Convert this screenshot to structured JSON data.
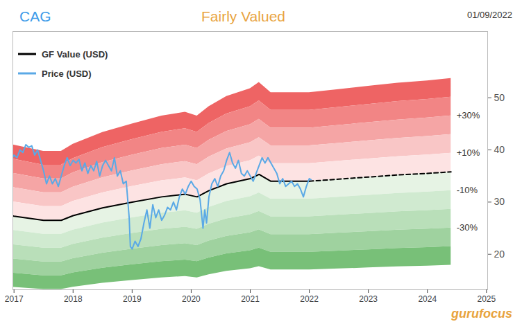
{
  "chart_data": {
    "type": "line",
    "title": "CAG",
    "subtitle": "Fairly Valued",
    "date": "01/09/2022",
    "logo": "gurufocus",
    "legend": "top-left",
    "grid": false,
    "xlim": [
      2016.98,
      2025.02
    ],
    "xticks": [
      2017,
      2018,
      2019,
      2020,
      2021,
      2022,
      2023,
      2024,
      2025
    ],
    "ylim": [
      13.2,
      62.7
    ],
    "yticks": [
      20,
      30,
      40,
      50
    ],
    "series": [
      {
        "name": "GF Value (USD)",
        "color": "#000000",
        "line_style": "solid",
        "x": [
          2016.9,
          2017.0,
          2017.5,
          2017.8,
          2018.0,
          2018.5,
          2019.0,
          2019.5,
          2019.9,
          2020.1,
          2020.3,
          2020.6,
          2021.0,
          2021.15,
          2021.35,
          2021.6,
          2022.0
        ],
        "values": [
          27.5,
          27.3,
          26.5,
          26.5,
          27.4,
          28.9,
          30.0,
          31.0,
          31.5,
          31.0,
          32.2,
          33.5,
          34.5,
          35.3,
          34.0,
          34.0,
          34.0
        ]
      },
      {
        "name": "GF Value (USD)",
        "color": "#000000",
        "line_style": "dashed",
        "x": [
          2022.0,
          2022.5,
          2023.0,
          2023.5,
          2024.0,
          2024.4
        ],
        "values": [
          34.0,
          34.4,
          34.8,
          35.2,
          35.5,
          35.8
        ]
      },
      {
        "name": "Price (USD)",
        "color": "#5aa9e6",
        "line_style": "solid",
        "x": [
          2016.9,
          2016.95,
          2017.0,
          2017.05,
          2017.1,
          2017.15,
          2017.2,
          2017.25,
          2017.3,
          2017.35,
          2017.4,
          2017.45,
          2017.5,
          2017.55,
          2017.6,
          2017.65,
          2017.7,
          2017.75,
          2017.8,
          2017.85,
          2017.9,
          2017.95,
          2018.0,
          2018.05,
          2018.1,
          2018.15,
          2018.2,
          2018.25,
          2018.3,
          2018.35,
          2018.4,
          2018.45,
          2018.5,
          2018.55,
          2018.6,
          2018.65,
          2018.7,
          2018.75,
          2018.8,
          2018.85,
          2018.9,
          2018.95,
          2018.97,
          2019.0,
          2019.05,
          2019.1,
          2019.15,
          2019.2,
          2019.25,
          2019.3,
          2019.35,
          2019.4,
          2019.45,
          2019.5,
          2019.55,
          2019.6,
          2019.65,
          2019.7,
          2019.75,
          2019.8,
          2019.85,
          2019.9,
          2019.95,
          2020.0,
          2020.05,
          2020.1,
          2020.15,
          2020.2,
          2020.23,
          2020.26,
          2020.3,
          2020.35,
          2020.4,
          2020.45,
          2020.5,
          2020.55,
          2020.6,
          2020.65,
          2020.7,
          2020.75,
          2020.8,
          2020.85,
          2020.9,
          2020.95,
          2021.0,
          2021.05,
          2021.1,
          2021.15,
          2021.2,
          2021.25,
          2021.3,
          2021.35,
          2021.4,
          2021.45,
          2021.5,
          2021.55,
          2021.6,
          2021.65,
          2021.7,
          2021.75,
          2021.8,
          2021.85,
          2021.9,
          2021.95,
          2022.0,
          2022.03
        ],
        "values": [
          36.5,
          38.0,
          39.0,
          38.5,
          40.0,
          39.5,
          41.0,
          40.5,
          40.8,
          39.0,
          40.0,
          38.0,
          36.0,
          33.5,
          35.0,
          33.5,
          34.5,
          33.0,
          35.0,
          37.0,
          38.5,
          37.0,
          38.0,
          37.5,
          38.2,
          36.0,
          37.5,
          35.5,
          37.0,
          36.0,
          37.8,
          35.0,
          37.0,
          38.0,
          37.0,
          36.0,
          38.5,
          35.0,
          36.0,
          33.5,
          34.0,
          27.0,
          21.5,
          21.0,
          22.5,
          21.5,
          23.0,
          26.0,
          28.5,
          25.0,
          29.5,
          27.0,
          28.5,
          26.5,
          27.5,
          29.0,
          28.5,
          30.0,
          28.5,
          31.0,
          32.5,
          31.5,
          33.0,
          34.0,
          33.0,
          32.5,
          30.5,
          25.0,
          28.5,
          26.0,
          31.0,
          33.5,
          34.5,
          33.0,
          35.0,
          36.0,
          38.0,
          39.5,
          37.5,
          36.5,
          38.0,
          35.5,
          35.0,
          36.0,
          35.0,
          34.0,
          35.5,
          37.0,
          38.5,
          37.5,
          38.5,
          37.5,
          36.5,
          35.5,
          33.5,
          34.5,
          33.0,
          33.5,
          34.0,
          33.0,
          33.5,
          32.5,
          31.0,
          33.0,
          34.5,
          34.3
        ]
      }
    ],
    "bands": [
      {
        "from": 40,
        "to": 50,
        "color": "#ee6464"
      },
      {
        "from": 30,
        "to": 40,
        "color": "#f28585"
      },
      {
        "from": 20,
        "to": 30,
        "color": "#f5a5a5"
      },
      {
        "from": 10,
        "to": 20,
        "color": "#f9c6c6"
      },
      {
        "from": 0,
        "to": 10,
        "color": "#fde3e3"
      },
      {
        "from": -10,
        "to": 0,
        "color": "#e6f3e4"
      },
      {
        "from": -20,
        "to": -10,
        "color": "#d0ead0"
      },
      {
        "from": -30,
        "to": -20,
        "color": "#b9dfb9"
      },
      {
        "from": -40,
        "to": -30,
        "color": "#9fd29f"
      },
      {
        "from": -50,
        "to": -40,
        "color": "#78c078"
      }
    ],
    "band_labels": [
      {
        "value": 30,
        "label": "+30%"
      },
      {
        "value": 10,
        "label": "+10%"
      },
      {
        "value": -10,
        "label": "-10%"
      },
      {
        "value": -30,
        "label": "-30%"
      }
    ]
  }
}
